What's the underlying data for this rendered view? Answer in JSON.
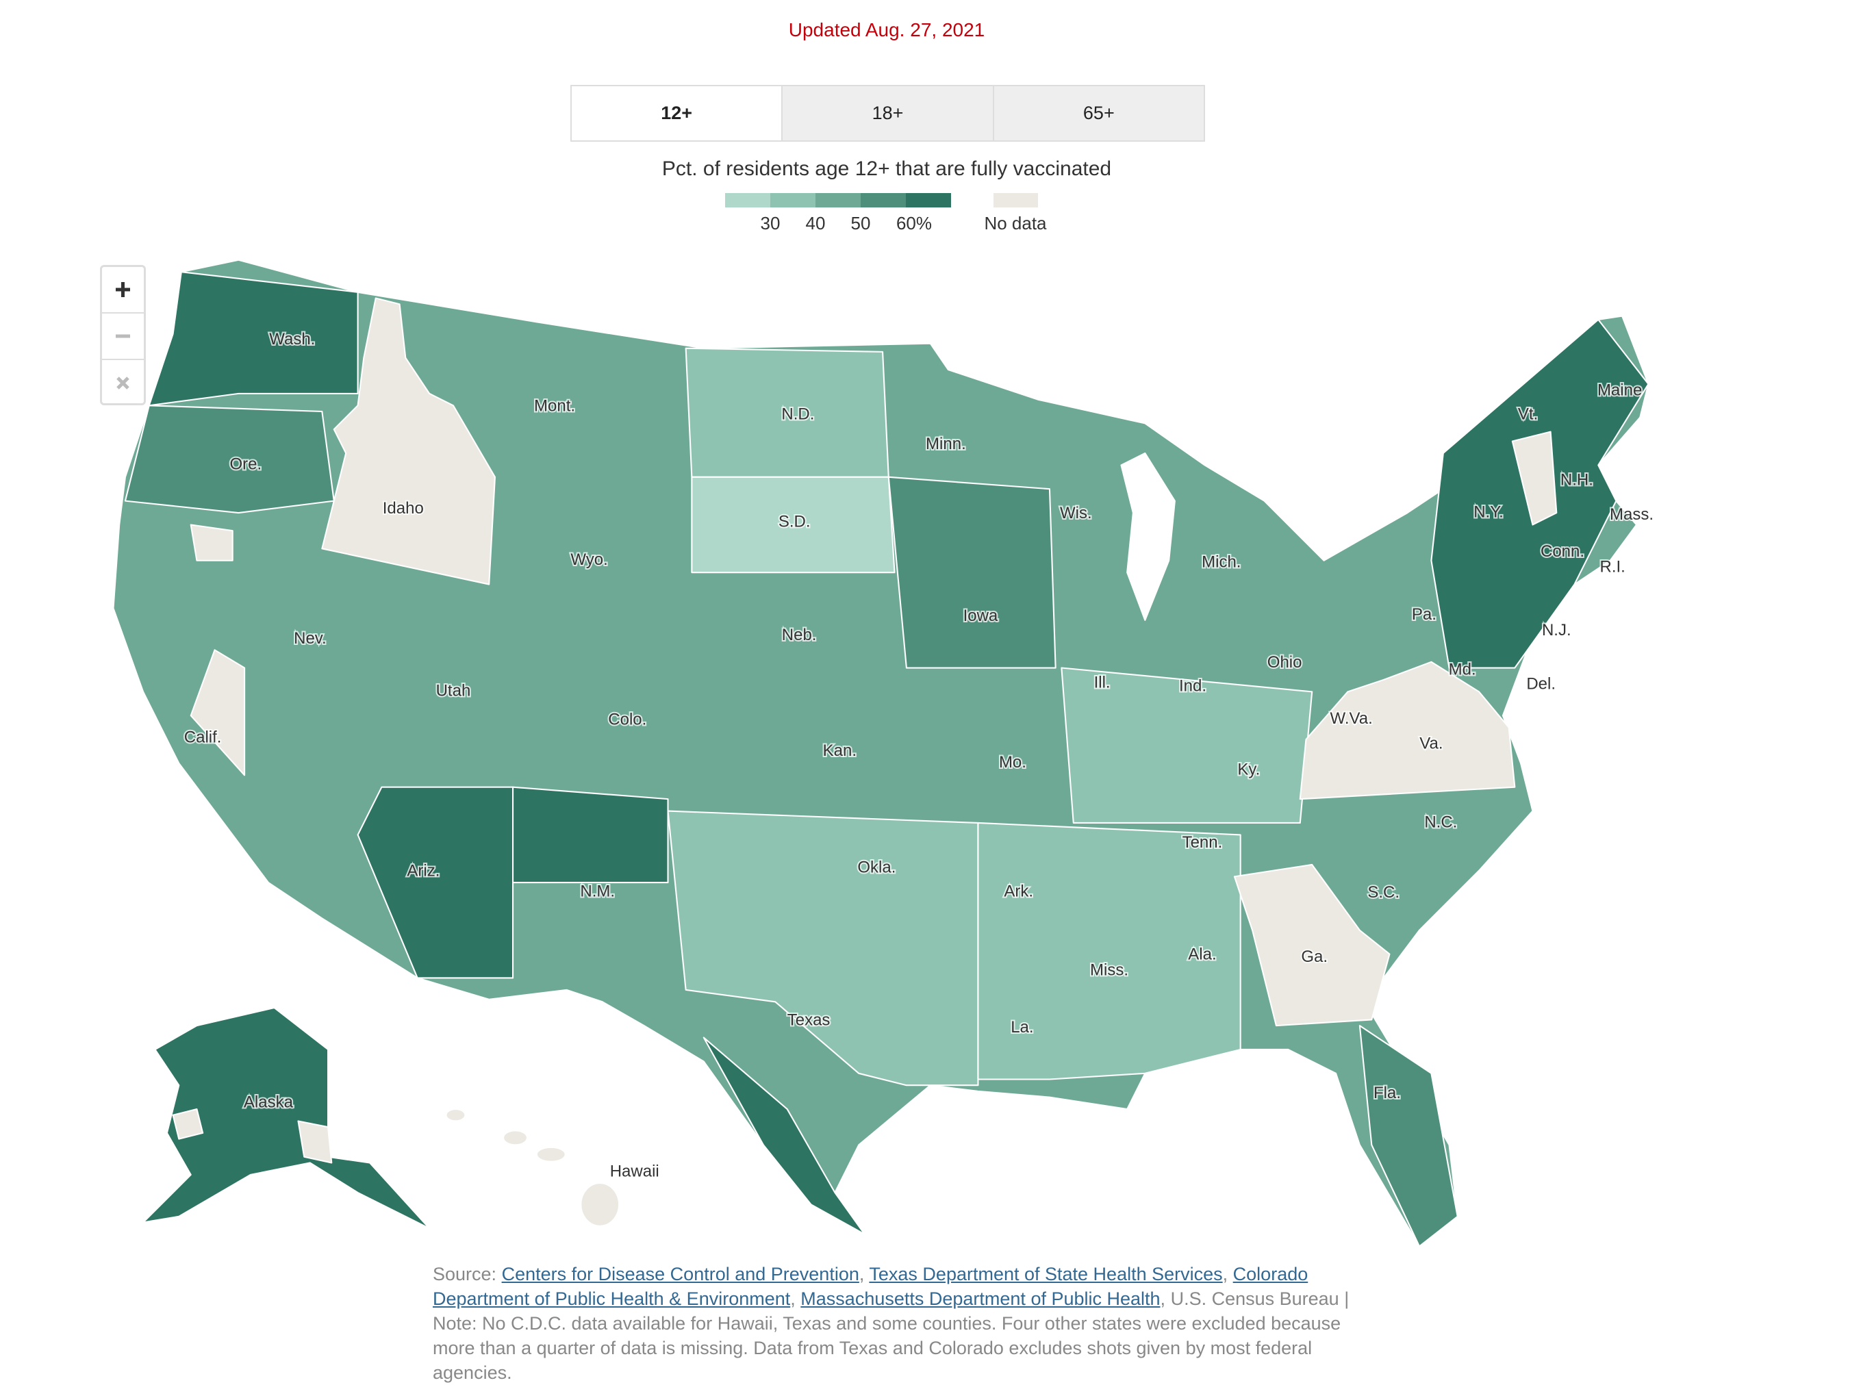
{
  "header": {
    "updated": "Updated Aug. 27, 2021"
  },
  "tabs": {
    "items": [
      "12+",
      "18+",
      "65+"
    ],
    "active": 0
  },
  "legend": {
    "title": "Pct. of residents age 12+ that are fully vaccinated",
    "colors": [
      "#afd8ca",
      "#8ec3b1",
      "#6ea996",
      "#4d8f7b",
      "#2d7462"
    ],
    "labels": [
      "30",
      "40",
      "50",
      "60%"
    ],
    "no_data_label": "No data",
    "no_data_color": "#ebe9e1"
  },
  "map": {
    "labels": [
      "Wash.",
      "Mont.",
      "Idaho",
      "Ore.",
      "N.D.",
      "Minn.",
      "Wis.",
      "Mich.",
      "Maine",
      "Vt.",
      "N.H.",
      "Mass.",
      "N.Y.",
      "Conn.",
      "R.I.",
      "Pa.",
      "N.J.",
      "Del.",
      "Md.",
      "Ohio",
      "Ind.",
      "Ill.",
      "Iowa",
      "S.D.",
      "Wyo.",
      "Neb.",
      "Nev.",
      "Utah",
      "Colo.",
      "Calif.",
      "Kan.",
      "Mo.",
      "Ky.",
      "W.Va.",
      "Va.",
      "Tenn.",
      "N.C.",
      "Okla.",
      "Ark.",
      "Ariz.",
      "N.M.",
      "S.C.",
      "Ga.",
      "Ala.",
      "Miss.",
      "La.",
      "Texas",
      "Fla.",
      "Alaska",
      "Hawaii"
    ]
  },
  "footer": {
    "segments": [
      {
        "text": "Source:"
      },
      {
        "text": "Centers for Disease Control and Prevention",
        "link": true
      },
      {
        "text": ","
      },
      {
        "text": "Texas Department of State Health Services",
        "link": true
      },
      {
        "text": ","
      },
      {
        "text": "Colorado Department of Public Health & Environment",
        "link": true
      },
      {
        "text": ","
      },
      {
        "text": "Massachusetts Department of Public Health",
        "link": true
      },
      {
        "text": ","
      },
      {
        "text": "U.S. Census Bureau | Note: No C.D.C. data available for Hawaii, Texas and some counties. Four other states were excluded because more than a quarter of data is missing. Data from Texas and Colorado excludes shots given by most federal agencies."
      }
    ]
  }
}
